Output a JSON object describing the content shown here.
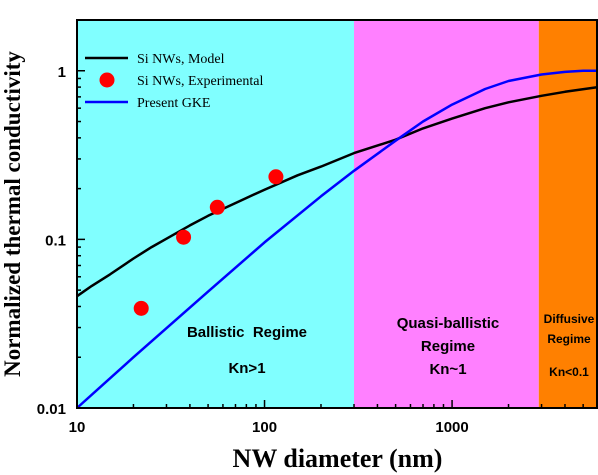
{
  "chart_data": {
    "type": "line",
    "xlabel": "NW diameter (nm)",
    "ylabel": "Normalized thermal conductivity",
    "xscale": "log",
    "yscale": "log",
    "xlim": [
      10,
      6000
    ],
    "ylim": [
      0.01,
      2
    ],
    "x_ticks": [
      {
        "value": 10,
        "label": "10"
      },
      {
        "value": 100,
        "label": "100"
      },
      {
        "value": 1000,
        "label": "1000"
      }
    ],
    "y_ticks": [
      {
        "value": 0.01,
        "label": "0.01"
      },
      {
        "value": 0.1,
        "label": "0.1"
      },
      {
        "value": 1,
        "label": "1"
      }
    ],
    "regions": [
      {
        "x_from": 10,
        "x_to": 300,
        "color": "#80ffff",
        "lines": [
          "Ballistic  Regime",
          "Kn>1"
        ]
      },
      {
        "x_from": 300,
        "x_to": 2900,
        "color": "#ff80ff",
        "lines": [
          "Quasi-ballistic",
          "Regime",
          "Kn~1"
        ]
      },
      {
        "x_from": 2900,
        "x_to": 6000,
        "color": "#ff8000",
        "lines": [
          "Diffusive",
          "Regime",
          "Kn<0.1"
        ]
      }
    ],
    "legend_position": "top-left",
    "series": [
      {
        "name": "Si NWs, Model",
        "kind": "line",
        "color": "#000000",
        "x": [
          10,
          12,
          15,
          20,
          25,
          30,
          40,
          50,
          65,
          80,
          100,
          150,
          200,
          300,
          500,
          700,
          1000,
          1500,
          2000,
          3000,
          4000,
          6000
        ],
        "y": [
          0.046,
          0.053,
          0.062,
          0.077,
          0.09,
          0.101,
          0.121,
          0.138,
          0.158,
          0.176,
          0.197,
          0.24,
          0.27,
          0.325,
          0.39,
          0.455,
          0.52,
          0.6,
          0.65,
          0.71,
          0.75,
          0.8
        ]
      },
      {
        "name": "Si NWs, Experimental",
        "kind": "scatter",
        "color": "#ff0000",
        "x": [
          22,
          37,
          56,
          115
        ],
        "y": [
          0.039,
          0.103,
          0.155,
          0.235
        ]
      },
      {
        "name": "Present GKE",
        "kind": "line",
        "color": "#0000ff",
        "x": [
          10,
          20,
          50,
          100,
          200,
          300,
          500,
          700,
          1000,
          1500,
          2000,
          3000,
          4000,
          5000,
          6000
        ],
        "y": [
          0.01,
          0.02,
          0.049,
          0.096,
          0.18,
          0.255,
          0.385,
          0.5,
          0.63,
          0.78,
          0.87,
          0.95,
          0.985,
          1.0,
          1.0
        ]
      }
    ]
  }
}
